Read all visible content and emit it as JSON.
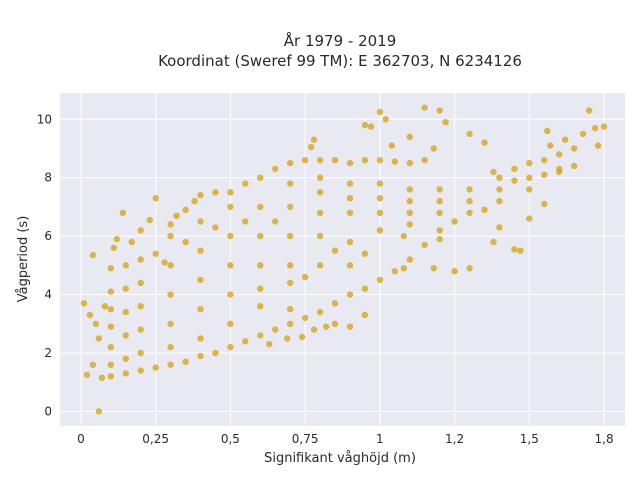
{
  "chart_data": {
    "type": "scatter",
    "title_lines": [
      "År 1979 - 2019",
      "Koordinat (Sweref 99 TM): E 362703, N 6234126"
    ],
    "xlabel": "Signifikant våghöjd (m)",
    "ylabel": "Vågperiod (s)",
    "xlim": [
      -0.07,
      1.82
    ],
    "ylim": [
      -0.5,
      10.9
    ],
    "xticks": [
      0,
      0.25,
      0.5,
      0.75,
      1,
      1.25,
      1.5,
      1.75
    ],
    "xtick_labels": [
      "0",
      "0,25",
      "0,5",
      "0,75",
      "1",
      "1,2",
      "1,5",
      "1,8"
    ],
    "yticks": [
      0,
      2,
      4,
      6,
      8,
      10
    ],
    "ytick_labels": [
      "0",
      "2",
      "4",
      "6",
      "8",
      "10"
    ],
    "grid": true,
    "colors": {
      "marker": "#d4a521",
      "plot_bg": "#e9e9f2",
      "grid": "#ffffff"
    },
    "points": [
      [
        0.06,
        0.0
      ],
      [
        0.01,
        3.7
      ],
      [
        0.04,
        5.35
      ],
      [
        0.03,
        3.3
      ],
      [
        0.05,
        3.0
      ],
      [
        0.02,
        1.25
      ],
      [
        0.04,
        1.6
      ],
      [
        0.06,
        2.5
      ],
      [
        0.08,
        3.6
      ],
      [
        0.1,
        4.9
      ],
      [
        0.11,
        5.6
      ],
      [
        0.12,
        5.9
      ],
      [
        0.14,
        6.8
      ],
      [
        0.17,
        5.8
      ],
      [
        0.2,
        6.2
      ],
      [
        0.23,
        6.55
      ],
      [
        0.25,
        7.3
      ],
      [
        0.28,
        5.1
      ],
      [
        0.3,
        6.4
      ],
      [
        0.32,
        6.7
      ],
      [
        0.35,
        6.9
      ],
      [
        0.38,
        7.2
      ],
      [
        0.4,
        7.4
      ],
      [
        0.45,
        7.5
      ],
      [
        0.5,
        7.5
      ],
      [
        0.55,
        7.8
      ],
      [
        0.6,
        8.0
      ],
      [
        0.65,
        8.3
      ],
      [
        0.7,
        8.5
      ],
      [
        0.75,
        8.6
      ],
      [
        0.8,
        8.6
      ],
      [
        0.85,
        8.6
      ],
      [
        0.9,
        8.5
      ],
      [
        0.95,
        8.6
      ],
      [
        1.0,
        8.6
      ],
      [
        1.05,
        8.55
      ],
      [
        1.1,
        8.5
      ],
      [
        1.15,
        8.6
      ],
      [
        0.78,
        9.3
      ],
      [
        0.77,
        9.05
      ],
      [
        0.95,
        9.8
      ],
      [
        0.97,
        9.75
      ],
      [
        1.0,
        10.25
      ],
      [
        1.02,
        10.0
      ],
      [
        1.04,
        9.1
      ],
      [
        1.1,
        9.4
      ],
      [
        1.15,
        10.4
      ],
      [
        1.2,
        10.3
      ],
      [
        1.22,
        9.9
      ],
      [
        1.18,
        9.0
      ],
      [
        1.3,
        9.5
      ],
      [
        1.35,
        9.2
      ],
      [
        1.38,
        8.2
      ],
      [
        1.4,
        8.0
      ],
      [
        1.45,
        8.3
      ],
      [
        1.5,
        8.5
      ],
      [
        1.55,
        8.6
      ],
      [
        1.6,
        8.8
      ],
      [
        1.65,
        9.0
      ],
      [
        1.7,
        10.3
      ],
      [
        1.72,
        9.7
      ],
      [
        1.68,
        9.5
      ],
      [
        1.62,
        9.3
      ],
      [
        1.57,
        9.1
      ],
      [
        1.56,
        9.6
      ],
      [
        1.75,
        9.75
      ],
      [
        1.73,
        9.1
      ],
      [
        1.6,
        8.3
      ],
      [
        1.5,
        7.6
      ],
      [
        1.4,
        7.2
      ],
      [
        1.3,
        6.8
      ],
      [
        1.25,
        6.5
      ],
      [
        1.2,
        6.2
      ],
      [
        1.15,
        5.7
      ],
      [
        1.1,
        5.2
      ],
      [
        1.05,
        4.8
      ],
      [
        1.0,
        4.5
      ],
      [
        0.95,
        4.2
      ],
      [
        0.9,
        4.0
      ],
      [
        0.85,
        3.7
      ],
      [
        0.8,
        3.4
      ],
      [
        0.75,
        3.2
      ],
      [
        0.7,
        3.0
      ],
      [
        0.65,
        2.8
      ],
      [
        0.6,
        2.6
      ],
      [
        0.55,
        2.4
      ],
      [
        0.5,
        2.2
      ],
      [
        0.45,
        2.0
      ],
      [
        0.4,
        1.9
      ],
      [
        0.35,
        1.7
      ],
      [
        0.3,
        1.6
      ],
      [
        0.25,
        1.5
      ],
      [
        0.2,
        1.4
      ],
      [
        0.15,
        1.3
      ],
      [
        0.1,
        1.2
      ],
      [
        0.07,
        1.15
      ],
      [
        1.4,
        6.3
      ],
      [
        1.45,
        5.55
      ],
      [
        1.47,
        5.5
      ],
      [
        1.38,
        5.8
      ],
      [
        1.35,
        6.9
      ],
      [
        1.5,
        6.6
      ],
      [
        1.55,
        7.1
      ],
      [
        1.3,
        4.9
      ],
      [
        1.25,
        4.8
      ],
      [
        1.2,
        5.9
      ],
      [
        1.18,
        4.9
      ],
      [
        1.08,
        4.9
      ],
      [
        1.08,
        6.0
      ],
      [
        1.1,
        6.4
      ],
      [
        0.9,
        5.8
      ],
      [
        0.85,
        5.5
      ],
      [
        0.8,
        5.0
      ],
      [
        0.75,
        4.6
      ],
      [
        0.7,
        4.4
      ],
      [
        0.82,
        2.9
      ],
      [
        0.78,
        2.8
      ],
      [
        0.74,
        2.55
      ],
      [
        0.69,
        2.5
      ],
      [
        0.63,
        2.3
      ],
      [
        0.6,
        3.6
      ],
      [
        0.6,
        4.2
      ],
      [
        0.6,
        5.0
      ],
      [
        0.6,
        6.0
      ],
      [
        0.6,
        7.0
      ],
      [
        0.5,
        3.0
      ],
      [
        0.5,
        4.0
      ],
      [
        0.5,
        5.0
      ],
      [
        0.5,
        6.0
      ],
      [
        0.5,
        7.0
      ],
      [
        0.4,
        2.5
      ],
      [
        0.4,
        3.5
      ],
      [
        0.4,
        4.5
      ],
      [
        0.4,
        5.5
      ],
      [
        0.4,
        6.5
      ],
      [
        0.3,
        2.2
      ],
      [
        0.3,
        3.0
      ],
      [
        0.3,
        4.0
      ],
      [
        0.3,
        5.0
      ],
      [
        0.3,
        6.0
      ],
      [
        0.2,
        2.0
      ],
      [
        0.2,
        2.8
      ],
      [
        0.2,
        3.6
      ],
      [
        0.2,
        4.4
      ],
      [
        0.2,
        5.2
      ],
      [
        0.15,
        1.8
      ],
      [
        0.15,
        2.6
      ],
      [
        0.15,
        3.4
      ],
      [
        0.15,
        4.2
      ],
      [
        0.15,
        5.0
      ],
      [
        0.1,
        1.6
      ],
      [
        0.1,
        2.2
      ],
      [
        0.1,
        2.9
      ],
      [
        0.1,
        3.5
      ],
      [
        0.1,
        4.1
      ],
      [
        0.7,
        3.5
      ],
      [
        0.7,
        5.0
      ],
      [
        0.7,
        6.0
      ],
      [
        0.7,
        7.0
      ],
      [
        0.7,
        7.8
      ],
      [
        0.8,
        6.0
      ],
      [
        0.8,
        6.8
      ],
      [
        0.8,
        7.5
      ],
      [
        0.8,
        8.0
      ],
      [
        0.9,
        6.8
      ],
      [
        0.9,
        7.3
      ],
      [
        0.9,
        7.8
      ],
      [
        1.0,
        6.2
      ],
      [
        1.0,
        6.8
      ],
      [
        1.0,
        7.3
      ],
      [
        1.0,
        7.8
      ],
      [
        1.1,
        6.8
      ],
      [
        1.1,
        7.2
      ],
      [
        1.1,
        7.6
      ],
      [
        1.2,
        6.8
      ],
      [
        1.2,
        7.2
      ],
      [
        1.2,
        7.6
      ],
      [
        1.3,
        7.2
      ],
      [
        1.3,
        7.6
      ],
      [
        1.4,
        7.6
      ],
      [
        1.45,
        7.9
      ],
      [
        1.5,
        8.0
      ],
      [
        1.55,
        8.1
      ],
      [
        1.6,
        8.2
      ],
      [
        1.65,
        8.4
      ],
      [
        0.65,
        6.5
      ],
      [
        0.55,
        6.5
      ],
      [
        0.45,
        6.3
      ],
      [
        0.35,
        5.8
      ],
      [
        0.25,
        5.4
      ],
      [
        0.9,
        2.9
      ],
      [
        0.95,
        3.3
      ],
      [
        0.85,
        3.0
      ],
      [
        0.9,
        5.0
      ],
      [
        0.95,
        5.4
      ]
    ]
  }
}
